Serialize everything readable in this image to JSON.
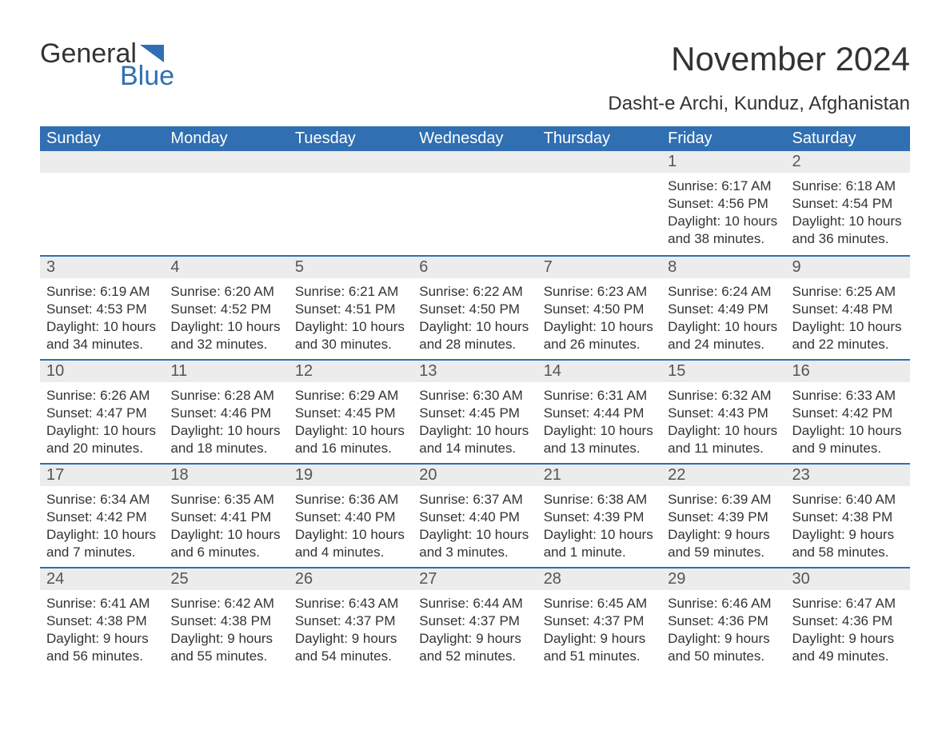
{
  "brand": {
    "word1": "General",
    "word2": "Blue",
    "accent_color": "#2f6fb2"
  },
  "title": "November 2024",
  "location": "Dasht-e Archi, Kunduz, Afghanistan",
  "colors": {
    "header_bg": "#2f6fb2",
    "header_text": "#ffffff",
    "daynum_bg": "#ececec",
    "row_border": "#2f6fb2",
    "text": "#333333",
    "background": "#ffffff"
  },
  "day_headers": [
    "Sunday",
    "Monday",
    "Tuesday",
    "Wednesday",
    "Thursday",
    "Friday",
    "Saturday"
  ],
  "weeks": [
    [
      {
        "n": "",
        "sunrise": "",
        "sunset": "",
        "daylight": ""
      },
      {
        "n": "",
        "sunrise": "",
        "sunset": "",
        "daylight": ""
      },
      {
        "n": "",
        "sunrise": "",
        "sunset": "",
        "daylight": ""
      },
      {
        "n": "",
        "sunrise": "",
        "sunset": "",
        "daylight": ""
      },
      {
        "n": "",
        "sunrise": "",
        "sunset": "",
        "daylight": ""
      },
      {
        "n": "1",
        "sunrise": "Sunrise: 6:17 AM",
        "sunset": "Sunset: 4:56 PM",
        "daylight": "Daylight: 10 hours and 38 minutes."
      },
      {
        "n": "2",
        "sunrise": "Sunrise: 6:18 AM",
        "sunset": "Sunset: 4:54 PM",
        "daylight": "Daylight: 10 hours and 36 minutes."
      }
    ],
    [
      {
        "n": "3",
        "sunrise": "Sunrise: 6:19 AM",
        "sunset": "Sunset: 4:53 PM",
        "daylight": "Daylight: 10 hours and 34 minutes."
      },
      {
        "n": "4",
        "sunrise": "Sunrise: 6:20 AM",
        "sunset": "Sunset: 4:52 PM",
        "daylight": "Daylight: 10 hours and 32 minutes."
      },
      {
        "n": "5",
        "sunrise": "Sunrise: 6:21 AM",
        "sunset": "Sunset: 4:51 PM",
        "daylight": "Daylight: 10 hours and 30 minutes."
      },
      {
        "n": "6",
        "sunrise": "Sunrise: 6:22 AM",
        "sunset": "Sunset: 4:50 PM",
        "daylight": "Daylight: 10 hours and 28 minutes."
      },
      {
        "n": "7",
        "sunrise": "Sunrise: 6:23 AM",
        "sunset": "Sunset: 4:50 PM",
        "daylight": "Daylight: 10 hours and 26 minutes."
      },
      {
        "n": "8",
        "sunrise": "Sunrise: 6:24 AM",
        "sunset": "Sunset: 4:49 PM",
        "daylight": "Daylight: 10 hours and 24 minutes."
      },
      {
        "n": "9",
        "sunrise": "Sunrise: 6:25 AM",
        "sunset": "Sunset: 4:48 PM",
        "daylight": "Daylight: 10 hours and 22 minutes."
      }
    ],
    [
      {
        "n": "10",
        "sunrise": "Sunrise: 6:26 AM",
        "sunset": "Sunset: 4:47 PM",
        "daylight": "Daylight: 10 hours and 20 minutes."
      },
      {
        "n": "11",
        "sunrise": "Sunrise: 6:28 AM",
        "sunset": "Sunset: 4:46 PM",
        "daylight": "Daylight: 10 hours and 18 minutes."
      },
      {
        "n": "12",
        "sunrise": "Sunrise: 6:29 AM",
        "sunset": "Sunset: 4:45 PM",
        "daylight": "Daylight: 10 hours and 16 minutes."
      },
      {
        "n": "13",
        "sunrise": "Sunrise: 6:30 AM",
        "sunset": "Sunset: 4:45 PM",
        "daylight": "Daylight: 10 hours and 14 minutes."
      },
      {
        "n": "14",
        "sunrise": "Sunrise: 6:31 AM",
        "sunset": "Sunset: 4:44 PM",
        "daylight": "Daylight: 10 hours and 13 minutes."
      },
      {
        "n": "15",
        "sunrise": "Sunrise: 6:32 AM",
        "sunset": "Sunset: 4:43 PM",
        "daylight": "Daylight: 10 hours and 11 minutes."
      },
      {
        "n": "16",
        "sunrise": "Sunrise: 6:33 AM",
        "sunset": "Sunset: 4:42 PM",
        "daylight": "Daylight: 10 hours and 9 minutes."
      }
    ],
    [
      {
        "n": "17",
        "sunrise": "Sunrise: 6:34 AM",
        "sunset": "Sunset: 4:42 PM",
        "daylight": "Daylight: 10 hours and 7 minutes."
      },
      {
        "n": "18",
        "sunrise": "Sunrise: 6:35 AM",
        "sunset": "Sunset: 4:41 PM",
        "daylight": "Daylight: 10 hours and 6 minutes."
      },
      {
        "n": "19",
        "sunrise": "Sunrise: 6:36 AM",
        "sunset": "Sunset: 4:40 PM",
        "daylight": "Daylight: 10 hours and 4 minutes."
      },
      {
        "n": "20",
        "sunrise": "Sunrise: 6:37 AM",
        "sunset": "Sunset: 4:40 PM",
        "daylight": "Daylight: 10 hours and 3 minutes."
      },
      {
        "n": "21",
        "sunrise": "Sunrise: 6:38 AM",
        "sunset": "Sunset: 4:39 PM",
        "daylight": "Daylight: 10 hours and 1 minute."
      },
      {
        "n": "22",
        "sunrise": "Sunrise: 6:39 AM",
        "sunset": "Sunset: 4:39 PM",
        "daylight": "Daylight: 9 hours and 59 minutes."
      },
      {
        "n": "23",
        "sunrise": "Sunrise: 6:40 AM",
        "sunset": "Sunset: 4:38 PM",
        "daylight": "Daylight: 9 hours and 58 minutes."
      }
    ],
    [
      {
        "n": "24",
        "sunrise": "Sunrise: 6:41 AM",
        "sunset": "Sunset: 4:38 PM",
        "daylight": "Daylight: 9 hours and 56 minutes."
      },
      {
        "n": "25",
        "sunrise": "Sunrise: 6:42 AM",
        "sunset": "Sunset: 4:38 PM",
        "daylight": "Daylight: 9 hours and 55 minutes."
      },
      {
        "n": "26",
        "sunrise": "Sunrise: 6:43 AM",
        "sunset": "Sunset: 4:37 PM",
        "daylight": "Daylight: 9 hours and 54 minutes."
      },
      {
        "n": "27",
        "sunrise": "Sunrise: 6:44 AM",
        "sunset": "Sunset: 4:37 PM",
        "daylight": "Daylight: 9 hours and 52 minutes."
      },
      {
        "n": "28",
        "sunrise": "Sunrise: 6:45 AM",
        "sunset": "Sunset: 4:37 PM",
        "daylight": "Daylight: 9 hours and 51 minutes."
      },
      {
        "n": "29",
        "sunrise": "Sunrise: 6:46 AM",
        "sunset": "Sunset: 4:36 PM",
        "daylight": "Daylight: 9 hours and 50 minutes."
      },
      {
        "n": "30",
        "sunrise": "Sunrise: 6:47 AM",
        "sunset": "Sunset: 4:36 PM",
        "daylight": "Daylight: 9 hours and 49 minutes."
      }
    ]
  ]
}
